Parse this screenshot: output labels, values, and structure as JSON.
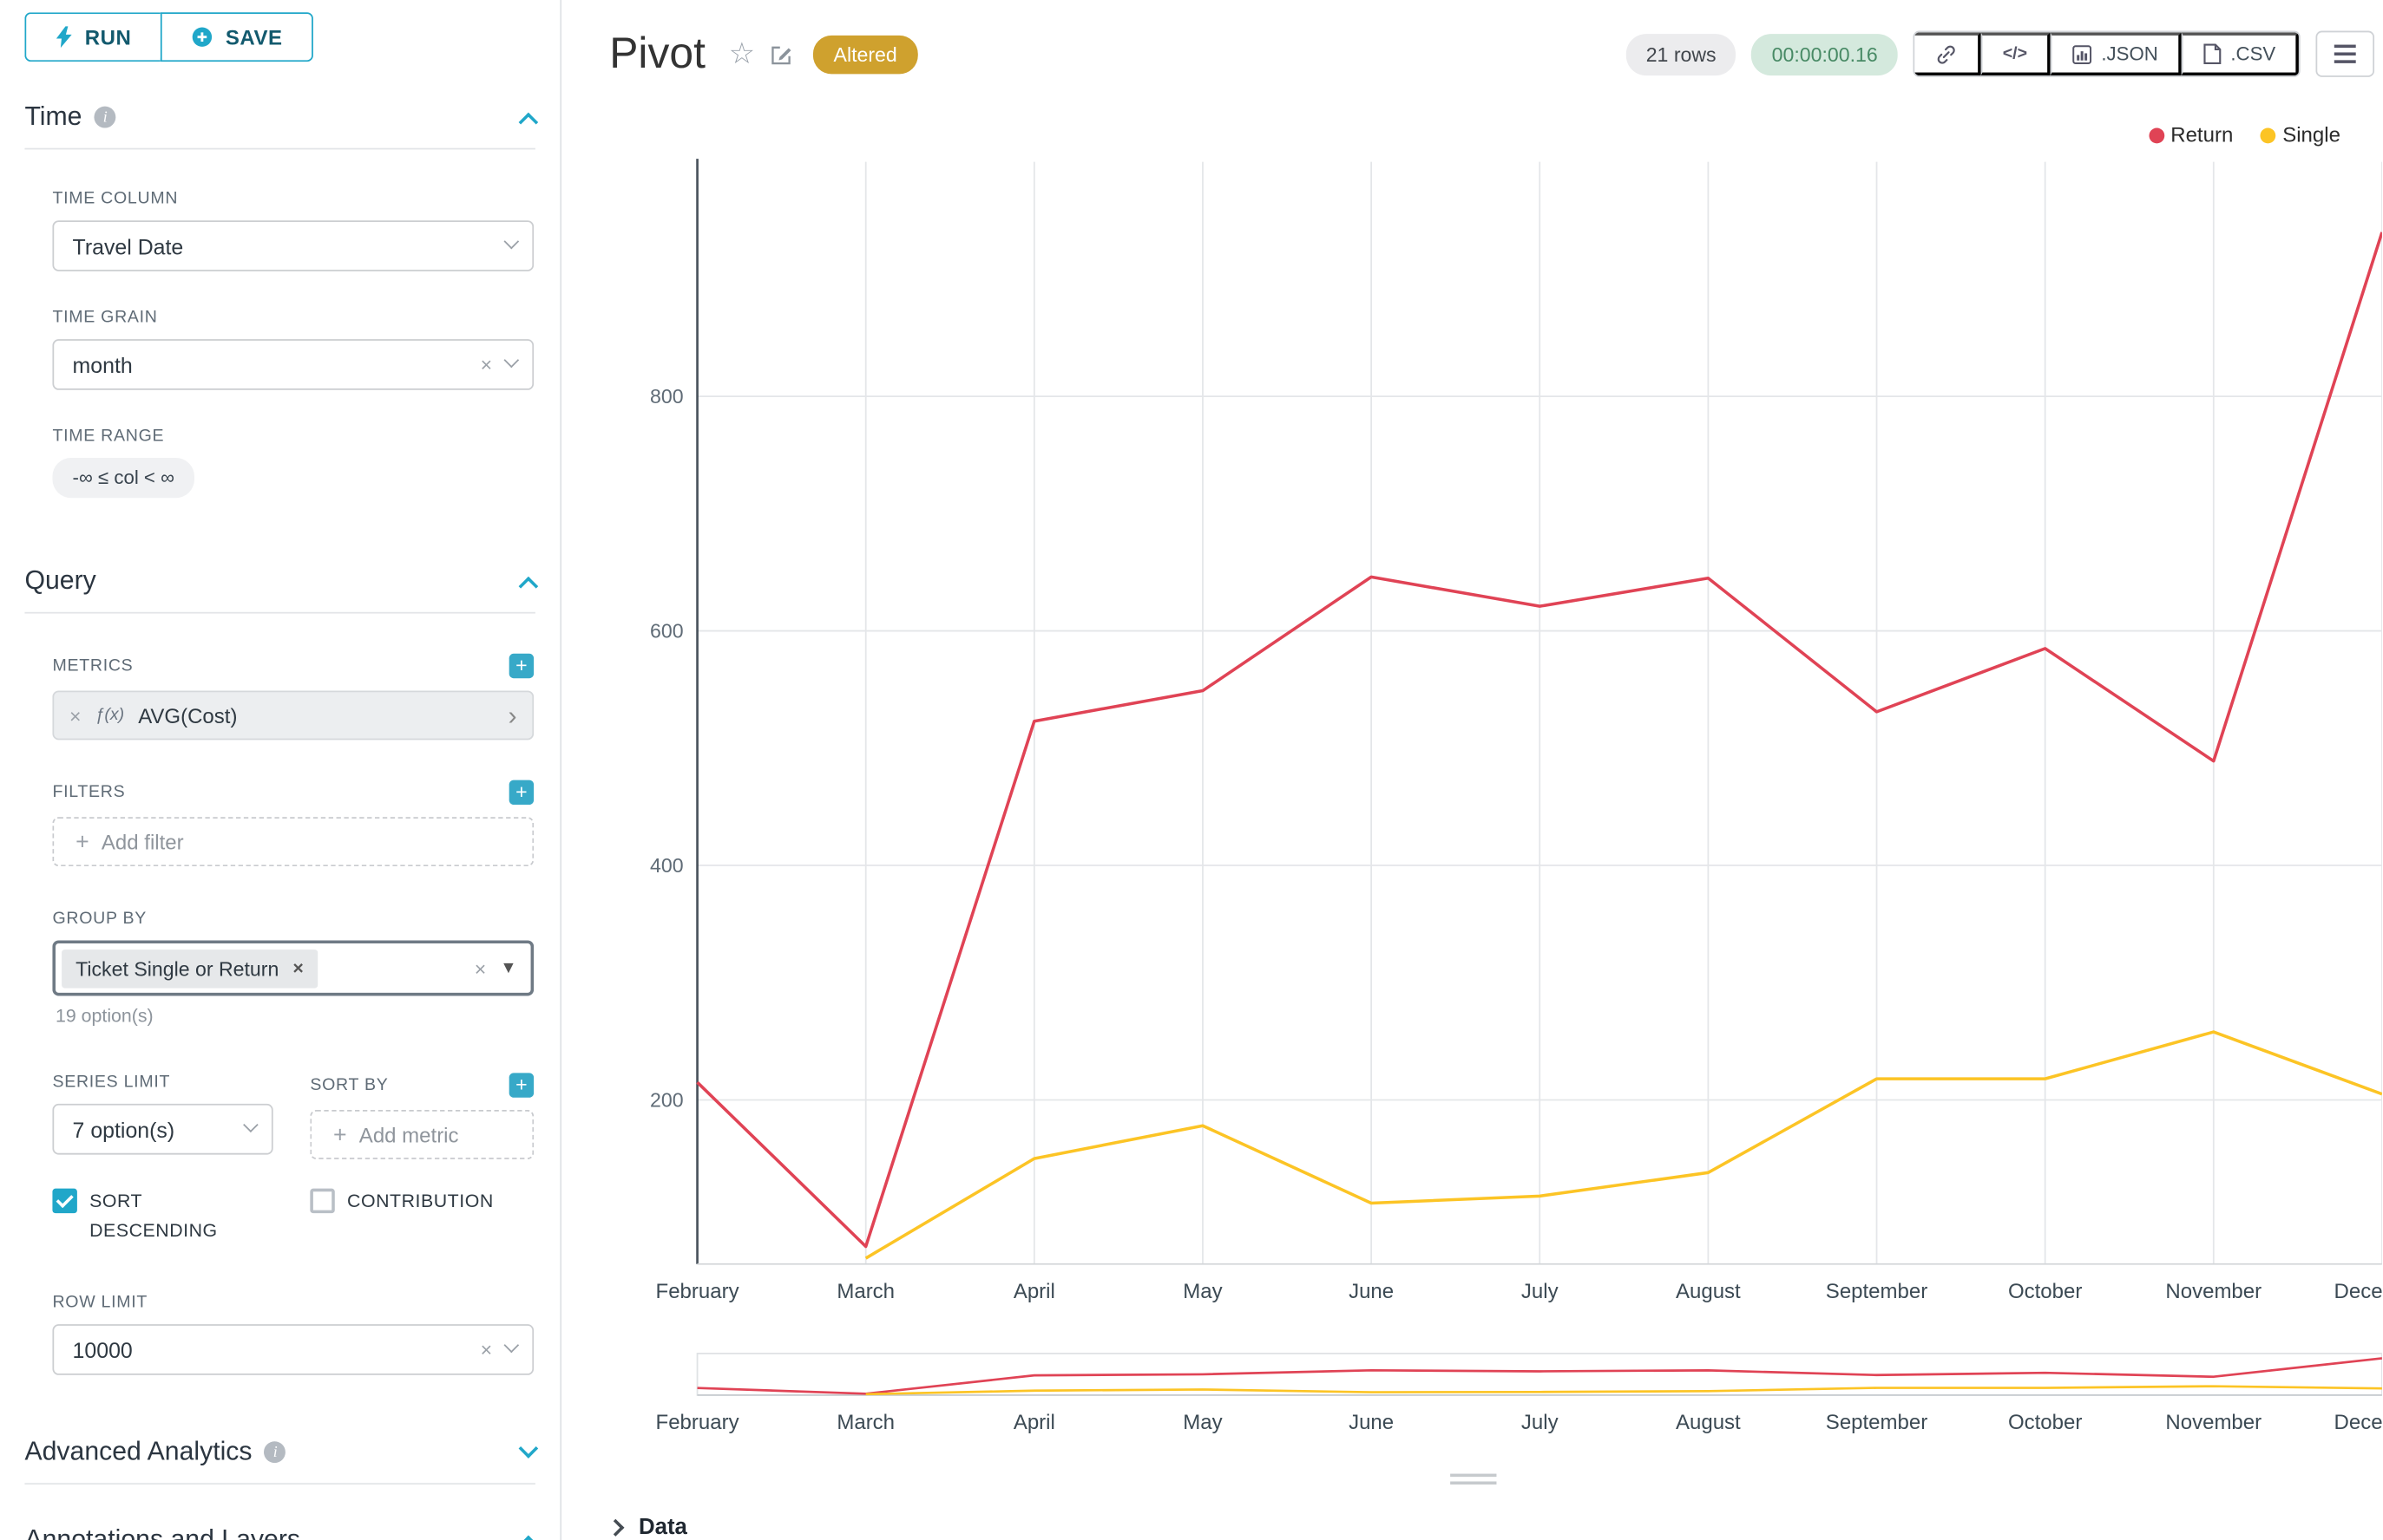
{
  "toolbar": {
    "run": "RUN",
    "save": "SAVE"
  },
  "panel": {
    "time": {
      "title": "Time",
      "time_column_label": "TIME COLUMN",
      "time_column_value": "Travel Date",
      "time_grain_label": "TIME GRAIN",
      "time_grain_value": "month",
      "time_range_label": "TIME RANGE",
      "time_range_value": "-∞ ≤ col < ∞"
    },
    "query": {
      "title": "Query",
      "metrics_label": "METRICS",
      "metric_fx": "ƒ(x)",
      "metric_name": "AVG(Cost)",
      "filters_label": "FILTERS",
      "add_filter": "Add filter",
      "group_by_label": "GROUP BY",
      "group_by_value": "Ticket Single or Return",
      "group_by_hint": "19 option(s)",
      "series_limit_label": "SERIES LIMIT",
      "series_limit_value": "7 option(s)",
      "sort_by_label": "SORT BY",
      "add_metric": "Add metric",
      "sort_descending": "SORT DESCENDING",
      "contribution": "CONTRIBUTION",
      "row_limit_label": "ROW LIMIT",
      "row_limit_value": "10000"
    },
    "advanced": {
      "title": "Advanced Analytics"
    },
    "annotations": {
      "title": "Annotations and Layers"
    }
  },
  "header": {
    "title": "Pivot",
    "altered": "Altered",
    "rows": "21 rows",
    "timer": "00:00:00.16",
    "code_icon": "</>",
    "json": ".JSON",
    "csv": ".CSV"
  },
  "colors": {
    "primary": "#20a7c9",
    "return_line": "#e04355",
    "single_line": "#fcc425",
    "altered_badge": "#cfa12e",
    "timer_bg": "#d4e9dd",
    "timer_text": "#488a65"
  },
  "chart_data": {
    "type": "line",
    "x": [
      "February",
      "March",
      "April",
      "May",
      "June",
      "July",
      "August",
      "September",
      "October",
      "November",
      "December"
    ],
    "series": [
      {
        "name": "Return",
        "color": "#e04355",
        "values": [
          215,
          75,
          523,
          549,
          646,
          621,
          645,
          531,
          585,
          489,
          940
        ]
      },
      {
        "name": "Single",
        "color": "#fcc425",
        "values": [
          null,
          65,
          150,
          178,
          112,
          118,
          138,
          218,
          218,
          258,
          205
        ]
      }
    ],
    "title": "Pivot",
    "xlabel": "",
    "ylabel": "",
    "yticks": [
      200,
      400,
      600,
      800
    ],
    "ylim": [
      60,
      1000
    ],
    "grid": true,
    "legend_position": "top-right",
    "has_range_selector": true
  },
  "footer": {
    "data": "Data"
  }
}
